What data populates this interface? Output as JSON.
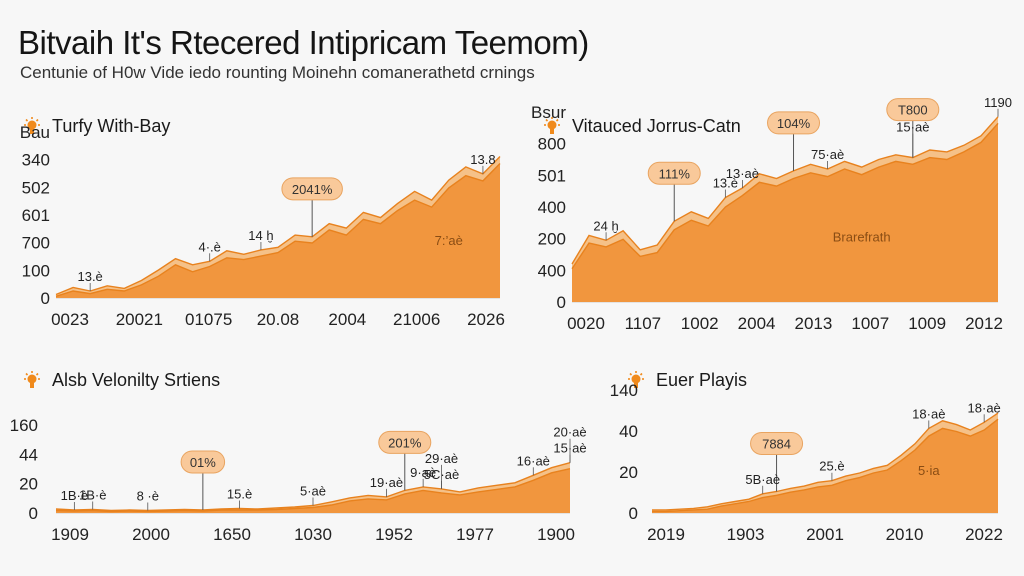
{
  "title": "Bitvaih It's Rtecered Intipricam Teemom)",
  "subtitle": "Centunie of H0w Vide iedo rounting Moinehn comanerathetd crnings",
  "colors": {
    "area_light": "#f5b774",
    "area_dark": "#f0933a",
    "line": "#e8821e",
    "badge_fill": "#f9c99a",
    "icon": "#f08a1c"
  },
  "panel_icon": "lightbulb-icon",
  "chart_data": [
    {
      "type": "area",
      "title": "Turfy With-Bay",
      "yticks": [
        "0",
        "100",
        "700",
        "601",
        "502",
        "340",
        "Bau"
      ],
      "xticks": [
        "0023",
        "20021",
        "01075",
        "20.08",
        "2004",
        "21006",
        "2026"
      ],
      "series": [
        {
          "values": [
            4,
            12,
            8,
            14,
            11,
            20,
            32,
            45,
            38,
            42,
            54,
            50,
            55,
            58,
            72,
            70,
            85,
            80,
            98,
            92,
            108,
            122,
            112,
            135,
            150,
            142,
            162
          ]
        },
        {
          "values": [
            2,
            8,
            5,
            10,
            8,
            15,
            25,
            38,
            30,
            36,
            46,
            44,
            48,
            52,
            65,
            63,
            78,
            72,
            90,
            85,
            100,
            112,
            104,
            126,
            140,
            134,
            154
          ]
        }
      ],
      "ylim": [
        0,
        190
      ],
      "annotations": [
        {
          "text": "13.8",
          "kind": "label",
          "i": 25
        },
        {
          "text": "2041%",
          "kind": "badge",
          "i": 15
        },
        {
          "text": "4·.è",
          "kind": "label",
          "i": 9
        },
        {
          "text": "14 ḫ",
          "kind": "label",
          "i": 12
        },
        {
          "text": "13.è",
          "kind": "label",
          "i": 2
        },
        {
          "text": "7:’aè",
          "kind": "text",
          "i": 23
        }
      ]
    },
    {
      "type": "area",
      "title": "Vitauced Jorrus-Catn",
      "yticks": [
        "0",
        "400",
        "200",
        "400",
        "501",
        "800",
        "Bsur"
      ],
      "xticks": [
        "0020",
        "1107",
        "1002",
        "2004",
        "2013",
        "1007",
        "1009",
        "2012"
      ],
      "series": [
        {
          "values": [
            40,
            70,
            65,
            75,
            55,
            60,
            85,
            95,
            88,
            110,
            120,
            135,
            130,
            138,
            145,
            140,
            148,
            142,
            150,
            155,
            152,
            160,
            158,
            165,
            175,
            195
          ]
        },
        {
          "values": [
            35,
            62,
            58,
            66,
            48,
            52,
            76,
            86,
            80,
            100,
            112,
            126,
            122,
            130,
            136,
            132,
            140,
            134,
            142,
            148,
            145,
            152,
            150,
            158,
            168,
            188
          ]
        }
      ],
      "ylim": [
        0,
        200
      ],
      "annotations": [
        {
          "text": "1190",
          "kind": "label",
          "i": 25
        },
        {
          "text": "T800",
          "kind": "badge",
          "i": 20
        },
        {
          "text": "104%",
          "kind": "badge",
          "i": 13
        },
        {
          "text": "75·aè",
          "kind": "label",
          "i": 15
        },
        {
          "text": "15·aè",
          "kind": "label",
          "i": 20
        },
        {
          "text": "111%",
          "kind": "badge",
          "i": 6
        },
        {
          "text": "13.è",
          "kind": "label",
          "i": 9
        },
        {
          "text": "13·aè",
          "kind": "label",
          "i": 10
        },
        {
          "text": "24 ḫ",
          "kind": "label",
          "i": 2
        },
        {
          "text": "Brarefrath",
          "kind": "text",
          "i": 17
        }
      ]
    },
    {
      "type": "area",
      "title": "Alsb Velonilty Srtiens",
      "yticks": [
        "0",
        "20",
        "44",
        "160"
      ],
      "xticks": [
        "1909",
        "2000",
        "1650",
        "1030",
        "1952",
        "1977",
        "1900"
      ],
      "series": [
        {
          "values": [
            8,
            6,
            7,
            5,
            6,
            5,
            6,
            7,
            6,
            8,
            9,
            8,
            10,
            12,
            15,
            22,
            30,
            35,
            32,
            45,
            52,
            48,
            42,
            50,
            55,
            60,
            75,
            90,
            100
          ]
        },
        {
          "values": [
            5,
            4,
            5,
            3,
            4,
            3,
            4,
            5,
            4,
            6,
            6,
            6,
            7,
            9,
            11,
            16,
            24,
            28,
            26,
            38,
            45,
            40,
            36,
            42,
            47,
            52,
            65,
            80,
            88
          ]
        }
      ],
      "ylim": [
        0,
        175
      ],
      "annotations": [
        {
          "text": "15·aè",
          "kind": "label",
          "i": 28
        },
        {
          "text": "20·aè",
          "kind": "label",
          "i": 28
        },
        {
          "text": "201%",
          "kind": "badge",
          "i": 19
        },
        {
          "text": "01%",
          "kind": "badge",
          "i": 8
        },
        {
          "text": "5C·aè",
          "kind": "label",
          "i": 21
        },
        {
          "text": "19·aè",
          "kind": "label",
          "i": 18
        },
        {
          "text": "9·aè",
          "kind": "label",
          "i": 20
        },
        {
          "text": "1B·è",
          "kind": "label",
          "i": 1
        },
        {
          "text": "1B·è",
          "kind": "label",
          "i": 2
        },
        {
          "text": "8 ·è",
          "kind": "label",
          "i": 5
        },
        {
          "text": "15.è",
          "kind": "label",
          "i": 10
        },
        {
          "text": "5·aè",
          "kind": "label",
          "i": 14
        },
        {
          "text": "29·aè",
          "kind": "label",
          "i": 21
        },
        {
          "text": "16·aè",
          "kind": "label",
          "i": 26
        }
      ]
    },
    {
      "type": "area",
      "title": "Euer Playis",
      "yticks": [
        "0",
        "20",
        "40",
        "140"
      ],
      "xticks": [
        "2019",
        "1903",
        "2001",
        "2010",
        "2022"
      ],
      "series": [
        {
          "values": [
            4,
            4,
            5,
            6,
            8,
            12,
            15,
            18,
            25,
            28,
            32,
            35,
            40,
            42,
            48,
            52,
            58,
            62,
            75,
            90,
            110,
            120,
            115,
            108,
            118,
            130
          ]
        },
        {
          "values": [
            2,
            2,
            3,
            4,
            5,
            9,
            12,
            15,
            20,
            23,
            27,
            30,
            34,
            36,
            42,
            46,
            52,
            56,
            68,
            82,
            100,
            110,
            106,
            100,
            108,
            122
          ]
        }
      ],
      "ylim": [
        0,
        160
      ],
      "annotations": [
        {
          "text": "18·aè",
          "kind": "label",
          "i": 20
        },
        {
          "text": "18·aè",
          "kind": "label",
          "i": 24
        },
        {
          "text": "7884",
          "kind": "badge",
          "i": 9
        },
        {
          "text": "25.è",
          "kind": "label",
          "i": 13
        },
        {
          "text": "5B·aè",
          "kind": "label",
          "i": 8
        },
        {
          "text": "5·ia",
          "kind": "text",
          "i": 20
        }
      ]
    }
  ]
}
